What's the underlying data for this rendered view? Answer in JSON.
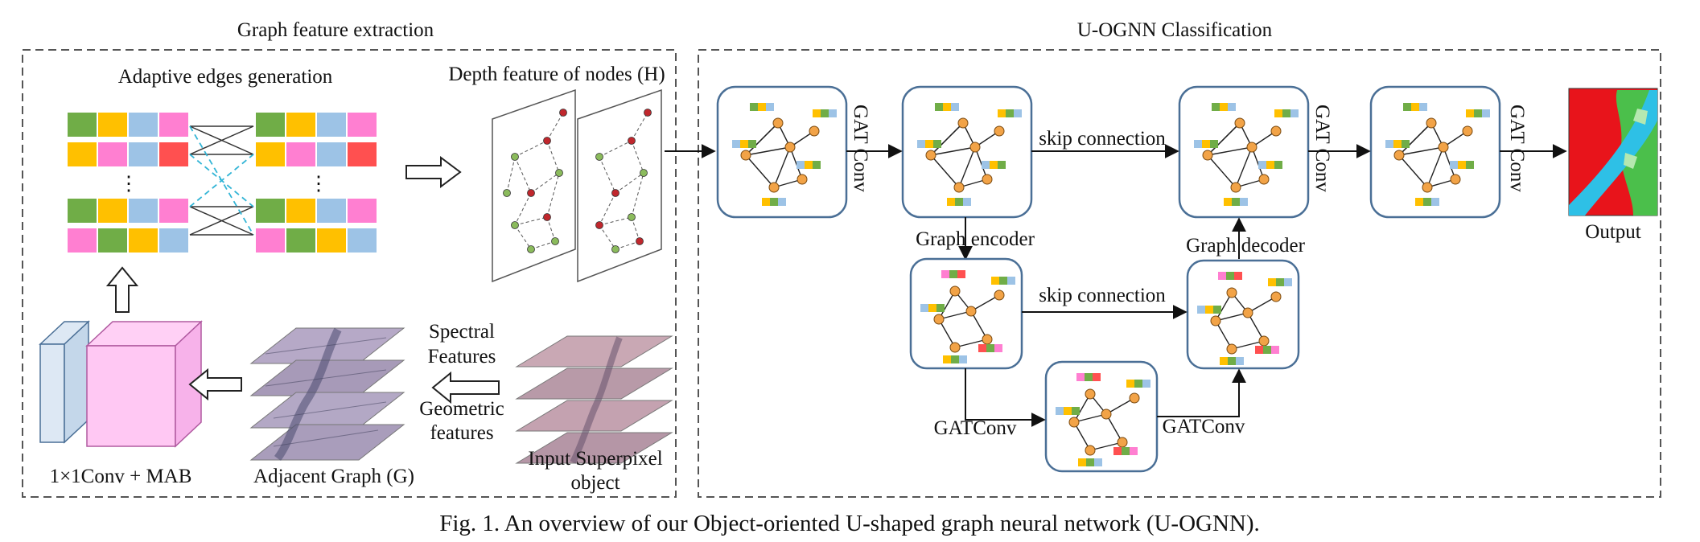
{
  "sections": {
    "left_title": "Graph feature extraction",
    "right_title": "U-OGNN Classification"
  },
  "labels": {
    "adaptive_edges": "Adaptive edges generation",
    "depth_feature": "Depth feature of nodes (H)",
    "conv_mab": "1×1Conv + MAB",
    "adjacent_graph": "Adjacent Graph (G)",
    "spectral_1": "Spectral",
    "spectral_2": "Features",
    "geometric_1": "Geometric",
    "geometric_2": "features",
    "input_1": "Input Superpixel",
    "input_2": "object",
    "gatconv": "GATConv",
    "gat_part": "GAT",
    "conv_part": "Conv",
    "graph_encoder": "Graph encoder",
    "graph_decoder": "Graph decoder",
    "skip_connection": "skip connection",
    "output": "Output"
  },
  "caption": "Fig. 1. An overview of our Object-oriented U-shaped graph neural network (U-OGNN).",
  "colors": {
    "green": "#70ad47",
    "orange": "#ffc000",
    "blue": "#9dc3e6",
    "pink": "#ff7fd1",
    "red": "#ff5050",
    "graph_border": "#4a6f96",
    "node": "#f2a347"
  },
  "feature_matrix_rows": [
    [
      "green",
      "orange",
      "blue",
      "pink"
    ],
    [
      "orange",
      "pink",
      "blue",
      "red"
    ],
    [
      "green",
      "orange",
      "blue",
      "pink"
    ],
    [
      "pink",
      "green",
      "orange",
      "blue"
    ]
  ],
  "ellipsis": "⋮"
}
